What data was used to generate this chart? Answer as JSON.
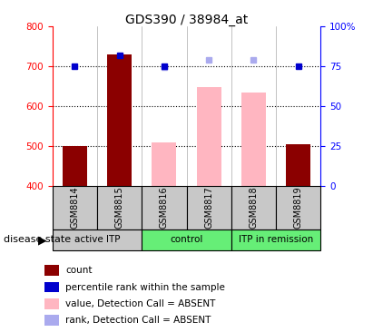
{
  "title": "GDS390 / 38984_at",
  "samples": [
    "GSM8814",
    "GSM8815",
    "GSM8816",
    "GSM8817",
    "GSM8818",
    "GSM8819"
  ],
  "bar_values": [
    500,
    730,
    null,
    null,
    null,
    505
  ],
  "bar_color": "#8B0000",
  "pink_bar_values": [
    null,
    null,
    510,
    648,
    635,
    null
  ],
  "pink_bar_color": "#FFB6C1",
  "blue_dot_values": [
    700,
    727,
    700,
    null,
    null,
    700
  ],
  "blue_dot_color": "#0000CD",
  "light_blue_dot_values": [
    null,
    null,
    698,
    717,
    717,
    null
  ],
  "light_blue_dot_color": "#AAAAEE",
  "ylim": [
    400,
    800
  ],
  "y2lim": [
    0,
    100
  ],
  "yticks": [
    400,
    500,
    600,
    700,
    800
  ],
  "y2ticks": [
    0,
    25,
    50,
    75,
    100
  ],
  "grid_values": [
    500,
    600,
    700
  ],
  "bar_width": 0.55,
  "groups_def": [
    {
      "indices": [
        0,
        1
      ],
      "label": "active ITP",
      "color": "#C8C8C8"
    },
    {
      "indices": [
        2,
        3
      ],
      "label": "control",
      "color": "#66EE77"
    },
    {
      "indices": [
        4,
        5
      ],
      "label": "ITP in remission",
      "color": "#66EE77"
    }
  ],
  "legend_items": [
    {
      "label": "count",
      "color": "#8B0000"
    },
    {
      "label": "percentile rank within the sample",
      "color": "#0000CD"
    },
    {
      "label": "value, Detection Call = ABSENT",
      "color": "#FFB6C1"
    },
    {
      "label": "rank, Detection Call = ABSENT",
      "color": "#AAAAEE"
    }
  ]
}
